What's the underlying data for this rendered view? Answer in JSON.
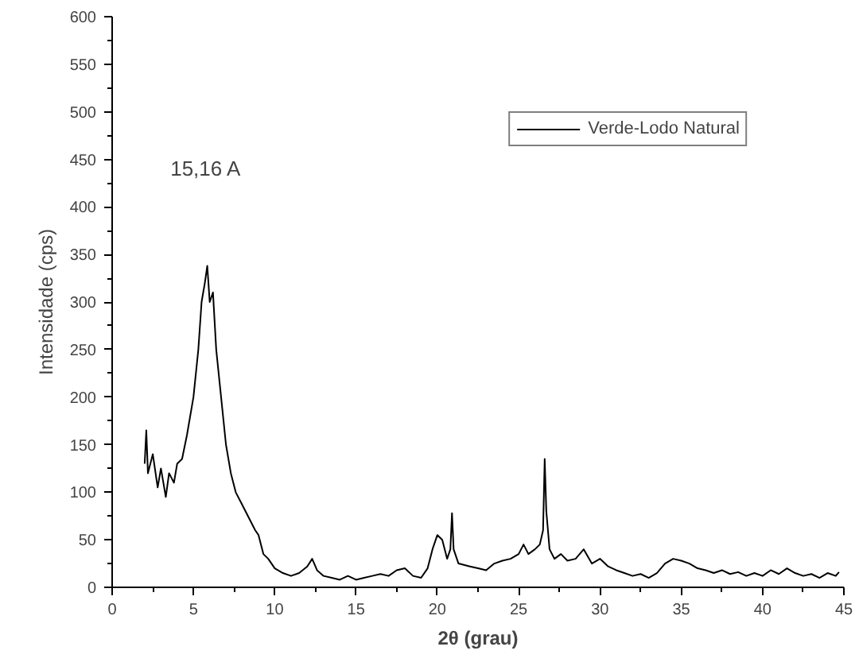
{
  "chart_data": {
    "type": "line",
    "xlabel": "2θ (grau)",
    "ylabel": "Intensidade (cps)",
    "xlim": [
      0,
      45
    ],
    "ylim": [
      0,
      600
    ],
    "xticks": [
      0,
      5,
      10,
      15,
      20,
      25,
      30,
      35,
      40,
      45
    ],
    "yticks": [
      0,
      50,
      100,
      150,
      200,
      250,
      300,
      350,
      400,
      450,
      500,
      550,
      600
    ],
    "grid": false,
    "legend": "top right",
    "marker": "none",
    "line_style": "solid",
    "annotations": [
      "15,16 A"
    ],
    "series": [
      {
        "name": "Verde-Lodo Natural",
        "color": "#000000",
        "x": [
          2.0,
          2.1,
          2.2,
          2.5,
          2.8,
          3.0,
          3.3,
          3.5,
          3.8,
          4.0,
          4.3,
          4.6,
          5.0,
          5.3,
          5.5,
          5.7,
          5.85,
          6.0,
          6.2,
          6.4,
          6.7,
          7.0,
          7.3,
          7.6,
          7.9,
          8.2,
          8.5,
          8.8,
          9.0,
          9.3,
          9.6,
          10.0,
          10.5,
          11.0,
          11.5,
          12.0,
          12.3,
          12.6,
          13.0,
          13.5,
          14.0,
          14.5,
          15.0,
          15.5,
          16.0,
          16.5,
          17.0,
          17.5,
          18.0,
          18.5,
          19.0,
          19.4,
          19.7,
          20.0,
          20.3,
          20.6,
          20.8,
          20.9,
          21.0,
          21.3,
          22.0,
          22.5,
          23.0,
          23.5,
          24.0,
          24.5,
          25.0,
          25.3,
          25.6,
          26.0,
          26.3,
          26.5,
          26.6,
          26.7,
          26.9,
          27.2,
          27.6,
          28.0,
          28.5,
          29.0,
          29.5,
          30.0,
          30.5,
          31.0,
          31.5,
          32.0,
          32.5,
          33.0,
          33.5,
          34.0,
          34.5,
          35.0,
          35.5,
          36.0,
          36.5,
          37.0,
          37.5,
          38.0,
          38.5,
          39.0,
          39.5,
          40.0,
          40.5,
          41.0,
          41.5,
          42.0,
          42.5,
          43.0,
          43.5,
          44.0,
          44.5,
          44.7
        ],
        "values": [
          130,
          165,
          120,
          140,
          105,
          125,
          95,
          120,
          110,
          130,
          135,
          160,
          200,
          250,
          300,
          320,
          338,
          300,
          310,
          250,
          200,
          150,
          120,
          100,
          90,
          80,
          70,
          60,
          55,
          35,
          30,
          20,
          15,
          12,
          15,
          22,
          30,
          18,
          12,
          10,
          8,
          12,
          8,
          10,
          12,
          14,
          12,
          18,
          20,
          12,
          10,
          20,
          40,
          55,
          50,
          30,
          40,
          78,
          40,
          25,
          22,
          20,
          18,
          25,
          28,
          30,
          35,
          45,
          35,
          40,
          45,
          60,
          135,
          80,
          40,
          30,
          35,
          28,
          30,
          40,
          25,
          30,
          22,
          18,
          15,
          12,
          14,
          10,
          15,
          25,
          30,
          28,
          25,
          20,
          18,
          15,
          18,
          14,
          16,
          12,
          15,
          12,
          18,
          14,
          20,
          15,
          12,
          14,
          10,
          15,
          12,
          16
        ]
      }
    ]
  }
}
